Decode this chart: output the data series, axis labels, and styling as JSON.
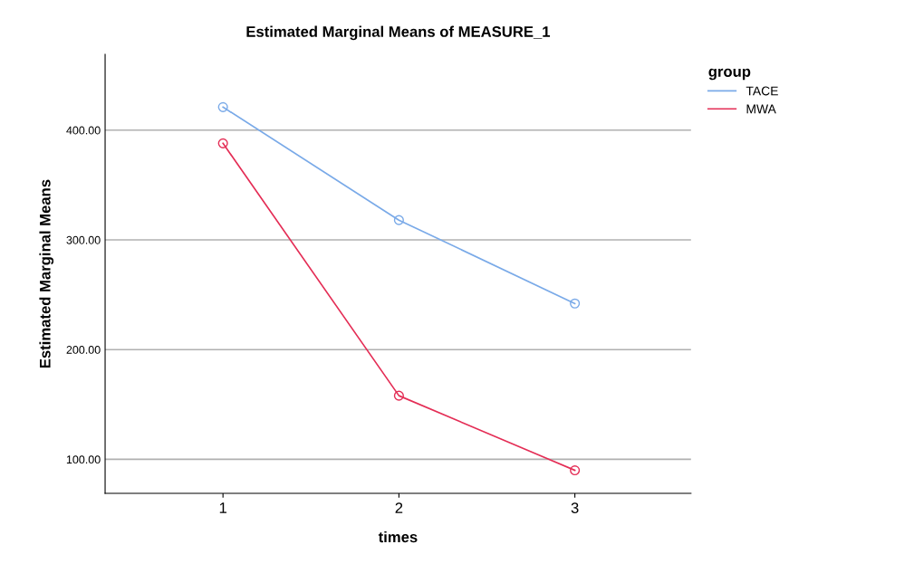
{
  "chart_data": {
    "type": "line",
    "title": "Estimated Marginal Means of MEASURE_1",
    "xlabel": "times",
    "ylabel": "Estimated Marginal Means",
    "legend_title": "group",
    "categories": [
      "1",
      "2",
      "3"
    ],
    "series": [
      {
        "name": "TACE",
        "color": "#7aaae8",
        "values": [
          421,
          318,
          242
        ]
      },
      {
        "name": "MWA",
        "color": "#e42e56",
        "values": [
          388,
          158,
          90
        ]
      }
    ],
    "ylim": [
      69,
      469
    ],
    "yticks": [
      {
        "value": 100,
        "label": "100.00"
      },
      {
        "value": 200,
        "label": "200.00"
      },
      {
        "value": 300,
        "label": "300.00"
      },
      {
        "value": 400,
        "label": "400.00"
      }
    ],
    "grid": "y",
    "legend": "top right",
    "marker": "circle",
    "line_style": "solid"
  }
}
